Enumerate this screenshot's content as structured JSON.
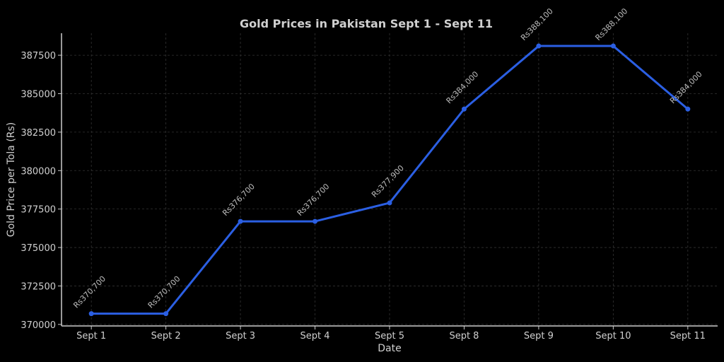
{
  "chart_data": {
    "type": "line",
    "title": "Gold Prices in Pakistan  Sept 1 - Sept 11",
    "xlabel": "Date",
    "ylabel": "Gold Price per Tola (Rs)",
    "categories": [
      "Sept 1",
      "Sept 2",
      "Sept 3",
      "Sept 4",
      "Sept 5",
      "Sept 8",
      "Sept 9",
      "Sept 10",
      "Sept 11"
    ],
    "values": [
      370700,
      370700,
      376700,
      376700,
      377900,
      384000,
      388100,
      388100,
      384000
    ],
    "data_labels": [
      "Rs370,700",
      "Rs370,700",
      "Rs376,700",
      "Rs376,700",
      "Rs377,900",
      "Rs384,000",
      "Rs388,100",
      "Rs388,100",
      "Rs384,000"
    ],
    "yticks": [
      370000,
      372500,
      375000,
      377500,
      380000,
      382500,
      385000,
      387500
    ],
    "ylim": [
      369900,
      388930
    ],
    "grid": true,
    "colors": {
      "background": "#000000",
      "line": "#2b5fe3",
      "text": "#d0d0d0",
      "axis": "#cccccc",
      "grid": "#333333"
    }
  }
}
